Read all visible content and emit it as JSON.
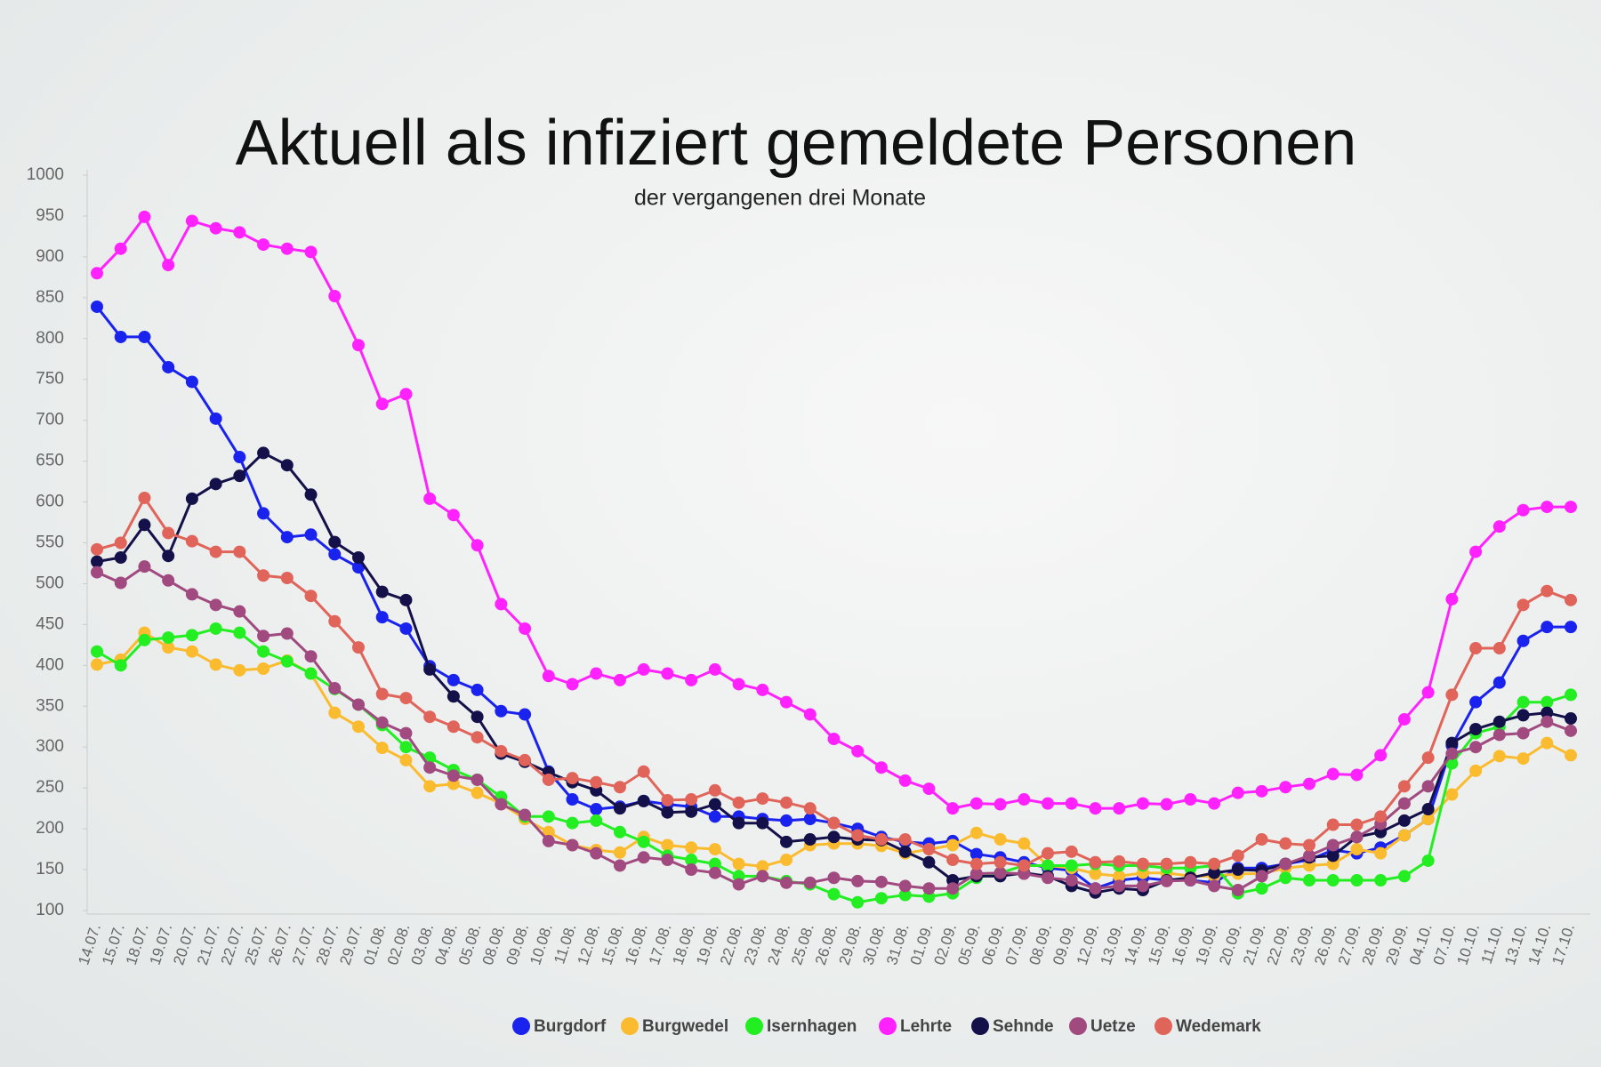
{
  "chart_data": {
    "type": "line",
    "title": "Aktuell als infiziert gemeldete Personen",
    "subtitle": "der vergangenen drei Monate",
    "categories": [
      "14.07.",
      "15.07.",
      "18.07.",
      "19.07.",
      "20.07.",
      "21.07.",
      "22.07.",
      "25.07.",
      "26.07.",
      "27.07.",
      "28.07.",
      "29.07.",
      "01.08.",
      "02.08.",
      "03.08.",
      "04.08.",
      "05.08.",
      "08.08.",
      "09.08.",
      "10.08.",
      "11.08.",
      "12.08.",
      "15.08.",
      "16.08.",
      "17.08.",
      "18.08.",
      "19.08.",
      "22.08.",
      "23.08.",
      "24.08.",
      "25.08.",
      "26.08.",
      "29.08.",
      "30.08.",
      "31.08.",
      "01.09.",
      "02.09.",
      "05.09.",
      "06.09.",
      "07.09.",
      "08.09.",
      "09.09.",
      "12.09.",
      "13.09.",
      "14.09.",
      "15.09.",
      "16.09.",
      "19.09.",
      "20.09.",
      "21.09.",
      "22.09.",
      "23.09.",
      "26.09.",
      "27.09.",
      "28.09.",
      "29.09.",
      "04.10.",
      "07.10.",
      "10.10.",
      "11.10.",
      "13.10.",
      "14.10.",
      "17.10."
    ],
    "series": [
      {
        "name": "Burgdorf",
        "color": "#1a22ee",
        "values": [
          839,
          802,
          802,
          765,
          747,
          702,
          655,
          586,
          557,
          560,
          536,
          520,
          459,
          445,
          399,
          382,
          370,
          344,
          340,
          270,
          236,
          224,
          227,
          234,
          230,
          227,
          215,
          215,
          212,
          210,
          212,
          207,
          200,
          190,
          184,
          182,
          185,
          169,
          165,
          159,
          152,
          149,
          127,
          137,
          140,
          137,
          137,
          134,
          152,
          152,
          157,
          162,
          174,
          170,
          177,
          192,
          212,
          302,
          355,
          379,
          430,
          447,
          447
        ]
      },
      {
        "name": "Burgwedel",
        "color": "#fbbb2e",
        "values": [
          401,
          407,
          440,
          422,
          417,
          401,
          394,
          396,
          406,
          390,
          342,
          325,
          299,
          284,
          252,
          255,
          244,
          231,
          212,
          196,
          180,
          174,
          171,
          190,
          180,
          177,
          175,
          157,
          154,
          162,
          180,
          182,
          182,
          179,
          170,
          175,
          180,
          195,
          187,
          182,
          155,
          152,
          145,
          142,
          146,
          146,
          142,
          142,
          145,
          145,
          152,
          155,
          157,
          175,
          170,
          192,
          212,
          242,
          271,
          289,
          286,
          305,
          290
        ]
      },
      {
        "name": "Isernhagen",
        "color": "#22ee22",
        "values": [
          417,
          400,
          431,
          434,
          437,
          445,
          440,
          417,
          405,
          390,
          371,
          352,
          327,
          300,
          287,
          272,
          260,
          239,
          215,
          215,
          207,
          210,
          196,
          184,
          167,
          162,
          157,
          142,
          142,
          136,
          132,
          120,
          110,
          115,
          119,
          117,
          121,
          140,
          146,
          155,
          155,
          155,
          157,
          155,
          155,
          152,
          152,
          155,
          121,
          127,
          140,
          137,
          137,
          137,
          137,
          142,
          161,
          280,
          317,
          325,
          355,
          355,
          364
        ]
      },
      {
        "name": "Lehrte",
        "color": "#ff22ff",
        "values": [
          880,
          910,
          949,
          890,
          944,
          935,
          930,
          915,
          910,
          906,
          852,
          792,
          720,
          732,
          604,
          584,
          547,
          475,
          445,
          387,
          377,
          390,
          382,
          395,
          390,
          382,
          395,
          377,
          370,
          355,
          340,
          310,
          295,
          275,
          259,
          249,
          225,
          231,
          230,
          236,
          231,
          231,
          225,
          225,
          231,
          230,
          236,
          231,
          244,
          246,
          251,
          255,
          267,
          266,
          290,
          334,
          367,
          481,
          539,
          570,
          590,
          594,
          594
        ]
      },
      {
        "name": "Sehnde",
        "color": "#14104a",
        "values": [
          527,
          532,
          572,
          534,
          604,
          622,
          632,
          660,
          645,
          609,
          551,
          532,
          490,
          480,
          395,
          362,
          337,
          292,
          282,
          269,
          257,
          247,
          225,
          234,
          220,
          221,
          230,
          207,
          207,
          184,
          187,
          190,
          187,
          186,
          172,
          159,
          137,
          142,
          142,
          146,
          142,
          130,
          122,
          127,
          125,
          137,
          140,
          146,
          150,
          149,
          157,
          165,
          167,
          190,
          196,
          210,
          224,
          305,
          322,
          331,
          339,
          342,
          335
        ]
      },
      {
        "name": "Uetze",
        "color": "#a04a80",
        "values": [
          514,
          501,
          521,
          504,
          487,
          474,
          466,
          436,
          439,
          411,
          372,
          352,
          330,
          317,
          275,
          265,
          260,
          230,
          217,
          185,
          180,
          170,
          155,
          165,
          162,
          150,
          146,
          132,
          142,
          134,
          134,
          140,
          136,
          135,
          130,
          127,
          127,
          145,
          146,
          145,
          140,
          137,
          127,
          130,
          130,
          136,
          137,
          130,
          125,
          142,
          157,
          167,
          180,
          190,
          206,
          231,
          252,
          292,
          300,
          315,
          317,
          331,
          320
        ]
      },
      {
        "name": "Wedemark",
        "color": "#e0645a",
        "values": [
          542,
          550,
          605,
          562,
          552,
          539,
          539,
          510,
          507,
          485,
          454,
          422,
          365,
          360,
          337,
          325,
          312,
          295,
          284,
          260,
          262,
          257,
          251,
          270,
          235,
          236,
          247,
          232,
          237,
          232,
          225,
          207,
          192,
          187,
          187,
          175,
          162,
          157,
          159,
          155,
          170,
          172,
          159,
          160,
          157,
          157,
          159,
          157,
          167,
          187,
          182,
          180,
          205,
          205,
          215,
          252,
          287,
          364,
          421,
          421,
          474,
          491,
          480
        ]
      }
    ],
    "ylim": [
      100,
      1000
    ],
    "yticks": [
      100,
      150,
      200,
      250,
      300,
      350,
      400,
      450,
      500,
      550,
      600,
      650,
      700,
      750,
      800,
      850,
      900,
      950,
      1000
    ]
  }
}
